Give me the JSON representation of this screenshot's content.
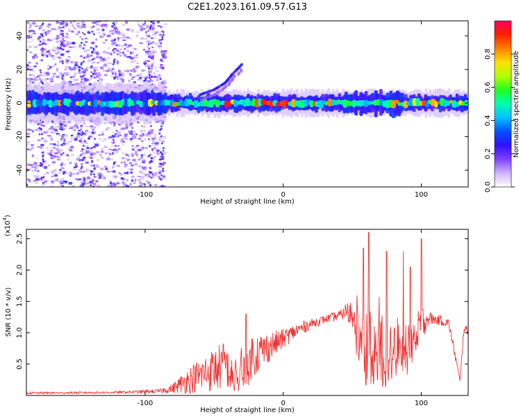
{
  "title": "C2E1.2023.161.09.57.G13",
  "chart_data": [
    {
      "type": "heatmap",
      "xlabel": "Height of straight line (km)",
      "ylabel": "Frequency (Hz)",
      "xlim": [
        -186,
        134
      ],
      "ylim": [
        -50,
        49
      ],
      "xticks": [
        -100,
        0,
        100
      ],
      "yticks": [
        -40,
        -20,
        0,
        20,
        40
      ],
      "grid": false,
      "colorbar": {
        "label": "Normalized spectral amplitude",
        "range": [
          0.0,
          1.0
        ],
        "ticks": [
          "0.0",
          "0.2",
          "0.4",
          "0.6",
          "0.8"
        ],
        "colors": [
          "#ffffff",
          "#cfb4ff",
          "#8040ff",
          "#3010ff",
          "#0050ff",
          "#00c0ff",
          "#00ffb0",
          "#20ff20",
          "#b0ff00",
          "#ffe000",
          "#ff8000",
          "#ff2000",
          "#ff0060"
        ]
      },
      "band": {
        "center_hz": 0,
        "typical_halfwidth_hz": 4,
        "peak_amplitude_ranges_km": [
          [
            -20,
            5
          ],
          [
            100,
            115
          ],
          [
            -45,
            -30
          ]
        ]
      },
      "drift_feature": {
        "x_km": [
          -60,
          -50,
          -42,
          -37,
          -30
        ],
        "freq_hz": [
          5,
          8,
          12,
          17,
          23
        ]
      },
      "noise_region_km": [
        -186,
        -85
      ]
    },
    {
      "type": "line",
      "xlabel": "Height of straight line (km)",
      "ylabel": "SNR (10 * v/v)",
      "multiplier_label": "(x10",
      "multiplier_exp": "4",
      "multiplier_close": ")",
      "xlim": [
        -186,
        134
      ],
      "ylim": [
        0,
        2.65
      ],
      "xticks": [
        -100,
        0,
        100
      ],
      "yticks": [
        0.5,
        1.0,
        1.5,
        2.0,
        2.5
      ],
      "ytick_labels": [
        "0.5",
        "1.0",
        "1.5",
        "2.0",
        "2.5"
      ],
      "grid": false,
      "color": "#ee3333",
      "series": [
        {
          "name": "SNR",
          "envelope_x": [
            -186,
            -120,
            -90,
            -80,
            -70,
            -60,
            -50,
            -40,
            -30,
            -20,
            -10,
            0,
            10,
            20,
            30,
            40,
            45,
            50,
            55,
            60,
            65,
            70,
            75,
            80,
            85,
            90,
            95,
            100,
            105,
            110,
            115,
            120,
            125,
            128,
            131,
            134
          ],
          "envelope_y": [
            0.04,
            0.05,
            0.07,
            0.12,
            0.25,
            0.35,
            0.45,
            0.55,
            0.62,
            0.7,
            0.8,
            0.92,
            1.05,
            1.15,
            1.22,
            1.28,
            1.33,
            1.35,
            1.3,
            1.25,
            1.2,
            1.2,
            1.15,
            1.12,
            1.1,
            1.18,
            1.2,
            1.18,
            1.25,
            1.22,
            1.2,
            1.15,
            0.6,
            0.22,
            1.1,
            1.0
          ],
          "spread_y": [
            0.02,
            0.02,
            0.04,
            0.1,
            0.25,
            0.35,
            0.45,
            0.5,
            0.55,
            0.45,
            0.3,
            0.2,
            0.15,
            0.1,
            0.08,
            0.1,
            0.12,
            0.4,
            0.9,
            1.1,
            1.1,
            1.1,
            1.05,
            1.0,
            0.9,
            0.85,
            0.6,
            0.4,
            0.15,
            0.1,
            0.1,
            0.1,
            0.1,
            0.05,
            0.1,
            0.1
          ],
          "spikes": [
            [
              62,
              2.6
            ],
            [
              100,
              2.5
            ],
            [
              58,
              2.35
            ],
            [
              75,
              2.3
            ],
            [
              87,
              2.3
            ],
            [
              92,
              2.05
            ],
            [
              -27,
              1.3
            ],
            [
              45,
              1.45
            ]
          ]
        }
      ]
    }
  ]
}
